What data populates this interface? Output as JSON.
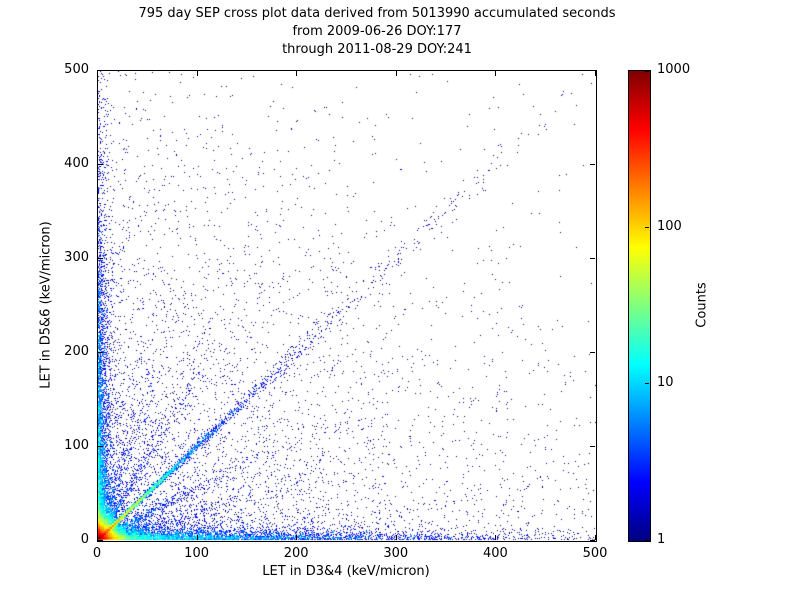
{
  "chart_data": {
    "type": "scatter",
    "title_lines": [
      "795 day SEP cross plot data derived from 5013990 accumulated seconds",
      "from 2009-06-26 DOY:177",
      "through 2011-08-29 DOY:241"
    ],
    "xlabel": "LET in D3&4 (keV/micron)",
    "ylabel": "LET in D5&6 (keV/micron)",
    "xlim": [
      0,
      500
    ],
    "ylim": [
      0,
      500
    ],
    "xticks": [
      0,
      100,
      200,
      300,
      400,
      500
    ],
    "yticks": [
      0,
      100,
      200,
      300,
      400,
      500
    ],
    "grid": false,
    "colorbar": {
      "label": "Counts",
      "scale": "log",
      "min": 1,
      "max": 1000,
      "tick_values": [
        1,
        10,
        100,
        1000
      ],
      "tick_labels": [
        "1",
        "10",
        "100",
        "1000"
      ],
      "colormap": "jet",
      "colormap_colors": [
        "#000080",
        "#0000ff",
        "#00ffff",
        "#ffff00",
        "#ff0000",
        "#800000"
      ]
    },
    "point_color_rule": "jet(log10(bin_count)/log10(1000))",
    "features": [
      {
        "kind": "core",
        "count": 14000,
        "scale_x": 7,
        "scale_y": 7,
        "desc": "very dense hot spot at origin, red/yellow core fading to green/cyan within ~30 keV/micron"
      },
      {
        "kind": "diagonal",
        "count": 4500,
        "mean_t": 28,
        "slope": 1.0,
        "spread": 1.5,
        "spread_grow": 0.02,
        "desc": "bright cyan-green streak along y=x from origin to ~60"
      },
      {
        "kind": "diagonal",
        "count": 1200,
        "mean_t": 120,
        "slope": 1.0,
        "spread": 3,
        "spread_grow": 0.04,
        "desc": "faint blue band along y=x out to ~350"
      },
      {
        "kind": "diagonal",
        "count": 500,
        "mean_t": 60,
        "slope": 0.55,
        "spread": 2,
        "spread_grow": 0.06,
        "desc": "faint track below diagonal"
      },
      {
        "kind": "diagonal",
        "count": 500,
        "mean_t": 60,
        "slope": 1.8,
        "spread": 2,
        "spread_grow": 0.06,
        "desc": "faint track above diagonal"
      },
      {
        "kind": "diagonal",
        "count": 350,
        "mean_t": 70,
        "slope": 0.3,
        "spread": 2,
        "spread_grow": 0.08,
        "desc": "shallow faint track"
      },
      {
        "kind": "diagonal",
        "count": 350,
        "mean_t": 70,
        "slope": 3.2,
        "spread": 2,
        "spread_grow": 0.08,
        "desc": "steep faint track"
      },
      {
        "kind": "axis_band",
        "axis": "x",
        "count": 5000,
        "mean_along": 130,
        "mean_off": 5,
        "desc": "dense band hugging x axis, cyan near origin, blue speckle to 500"
      },
      {
        "kind": "axis_band",
        "axis": "y",
        "count": 4200,
        "mean_along": 130,
        "mean_off": 5,
        "desc": "dense band hugging y axis, cyan near origin, blue speckle to 500"
      },
      {
        "kind": "background",
        "count": 5000,
        "mean_x": 180,
        "mean_y": 170,
        "desc": "sparse dark-blue single-count speckle over whole plane, denser toward origin"
      }
    ]
  }
}
